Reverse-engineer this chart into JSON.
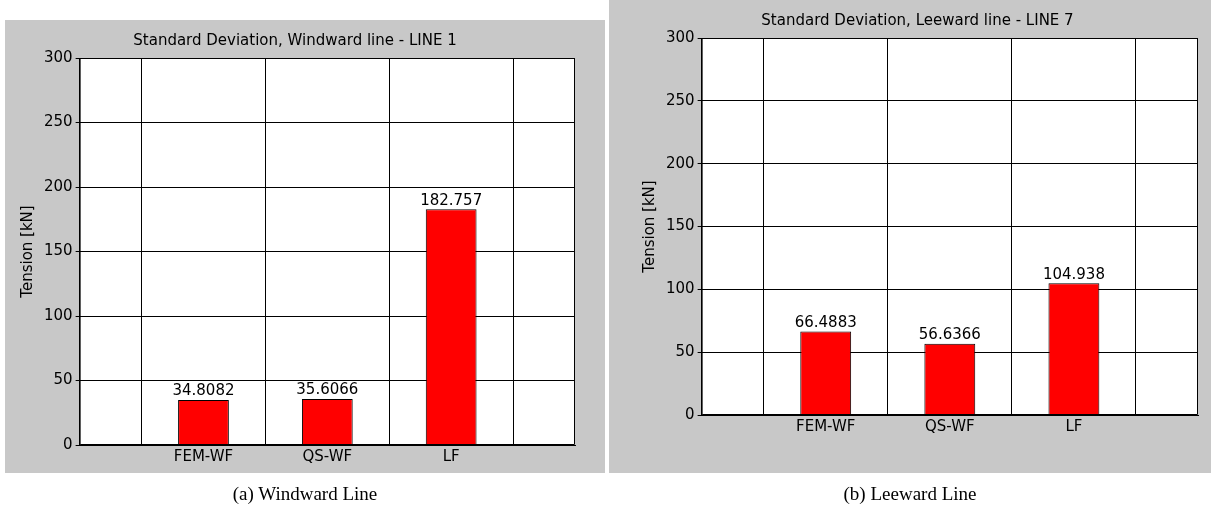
{
  "chart_data": [
    {
      "type": "bar",
      "title": "Standard Deviation, Windward line - LINE 1",
      "ylabel": "Tension [kN]",
      "categories": [
        "FEM-WF",
        "QS-WF",
        "LF"
      ],
      "values": [
        34.8082,
        35.6066,
        182.757
      ],
      "color": "#ff0000",
      "ylim": [
        0,
        300
      ],
      "yticks": [
        0,
        50,
        100,
        150,
        200,
        250,
        300
      ],
      "grid": true,
      "data_labels": true,
      "annotations": [
        "(a) Windward Line"
      ]
    },
    {
      "type": "bar",
      "title": "Standard Deviation, Leeward line - LINE 7",
      "ylabel": "Tension [kN]",
      "categories": [
        "FEM-WF",
        "QS-WF",
        "LF"
      ],
      "values": [
        66.4883,
        56.6366,
        104.938
      ],
      "color": "#ff0000",
      "ylim": [
        0,
        300
      ],
      "yticks": [
        0,
        50,
        100,
        150,
        200,
        250,
        300
      ],
      "grid": true,
      "data_labels": true,
      "annotations": [
        "(b) Leeward Line"
      ]
    }
  ]
}
